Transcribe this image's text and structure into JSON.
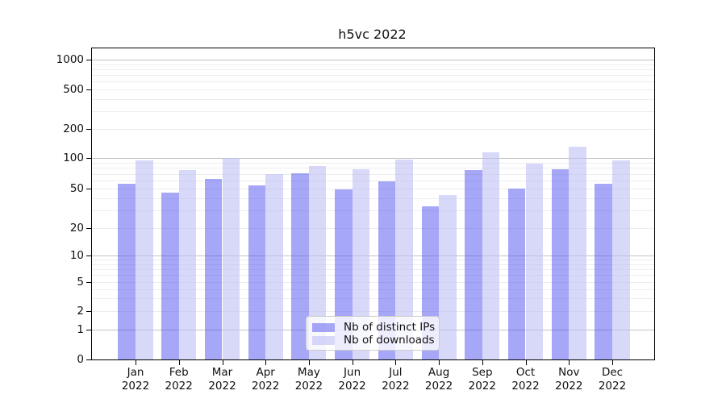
{
  "chart_data": {
    "type": "bar",
    "title": "h5vc 2022",
    "categories": [
      "Jan",
      "Feb",
      "Mar",
      "Apr",
      "May",
      "Jun",
      "Jul",
      "Aug",
      "Sep",
      "Oct",
      "Nov",
      "Dec"
    ],
    "x_tick_second_line": "2022",
    "series": [
      {
        "name": "Nb of distinct IPs",
        "values": [
          56,
          46,
          62,
          54,
          71,
          49,
          59,
          33,
          76,
          50,
          77,
          56
        ],
        "fill": "rgba(80, 80, 240, 0.5)"
      },
      {
        "name": "Nb of downloads",
        "values": [
          95,
          76,
          101,
          70,
          84,
          78,
          96,
          43,
          114,
          88,
          130,
          94
        ],
        "fill": "rgba(190, 190, 245, 0.6)"
      }
    ],
    "yscale": "symlog",
    "y_ticks": [
      0,
      1,
      2,
      5,
      10,
      20,
      50,
      100,
      200,
      500,
      1000
    ],
    "y_tick_labels": [
      "0",
      "1",
      "2",
      "5",
      "10",
      "20",
      "50",
      "100",
      "200",
      "500",
      "1000"
    ],
    "y_major_gridlines": [
      1,
      10,
      100,
      1000
    ],
    "y_minor_gridlines": [
      2,
      3,
      4,
      5,
      6,
      7,
      8,
      9,
      20,
      30,
      40,
      50,
      60,
      70,
      80,
      90,
      200,
      300,
      400,
      500,
      600,
      700,
      800,
      900
    ],
    "ylim": [
      0,
      1400
    ],
    "grid": true,
    "legend_position": "lower center",
    "colors": {
      "distinct_ips_bar": "rgba(80, 80, 240, 0.5)",
      "downloads_bar": "rgba(190, 190, 245, 0.6)",
      "major_gridline": "#c2c2c2",
      "minor_gridline": "#ededed",
      "axis": "#000000"
    },
    "scale_anchors_value_to_y": [
      [
        0,
        386
      ],
      [
        1,
        349
      ],
      [
        2,
        326
      ],
      [
        5,
        290
      ],
      [
        10,
        257
      ],
      [
        20,
        223
      ],
      [
        50,
        174
      ],
      [
        100,
        136
      ],
      [
        200,
        100
      ],
      [
        500,
        51
      ],
      [
        1000,
        14
      ]
    ]
  }
}
